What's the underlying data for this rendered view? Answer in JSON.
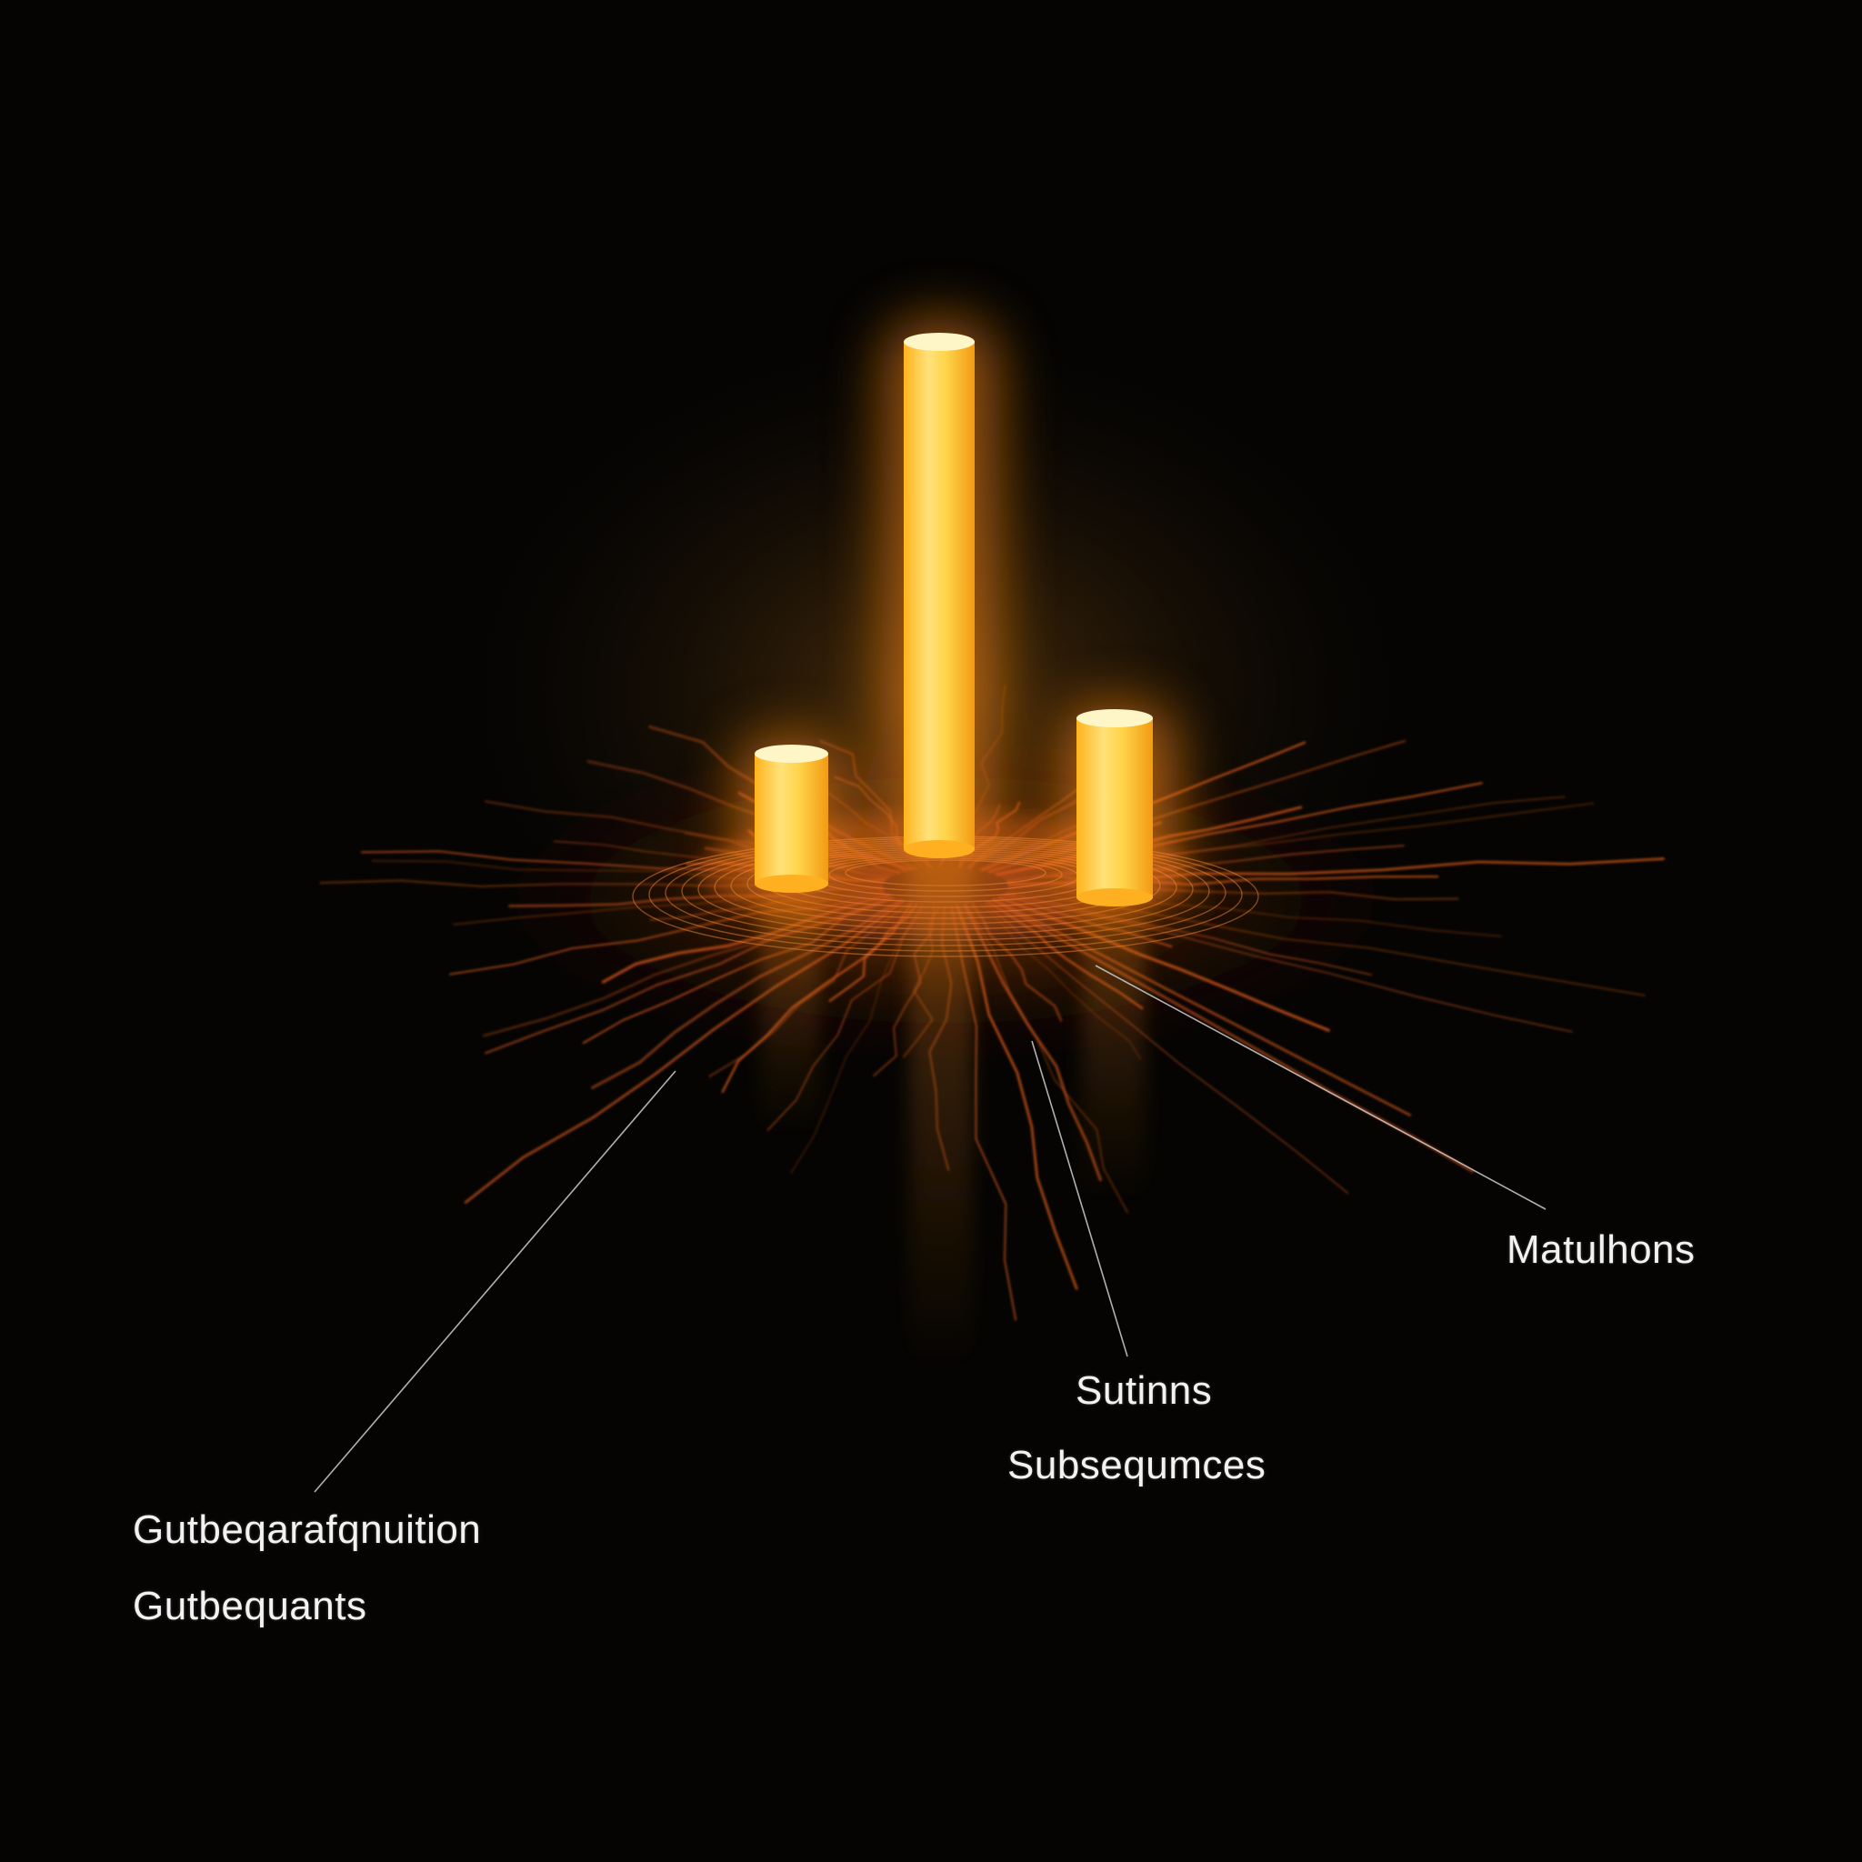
{
  "background_color": "#050403",
  "glow_color": "#ffb21a",
  "vein_color": "#d2561a",
  "labels": {
    "mutations": "Matulhons",
    "sutinns": "Sutinns",
    "subsequences_right": "Subsequmces",
    "gutbe_line1": "Gutbeqarafqnuition",
    "gutbe_line2": "Gutbequants"
  }
}
